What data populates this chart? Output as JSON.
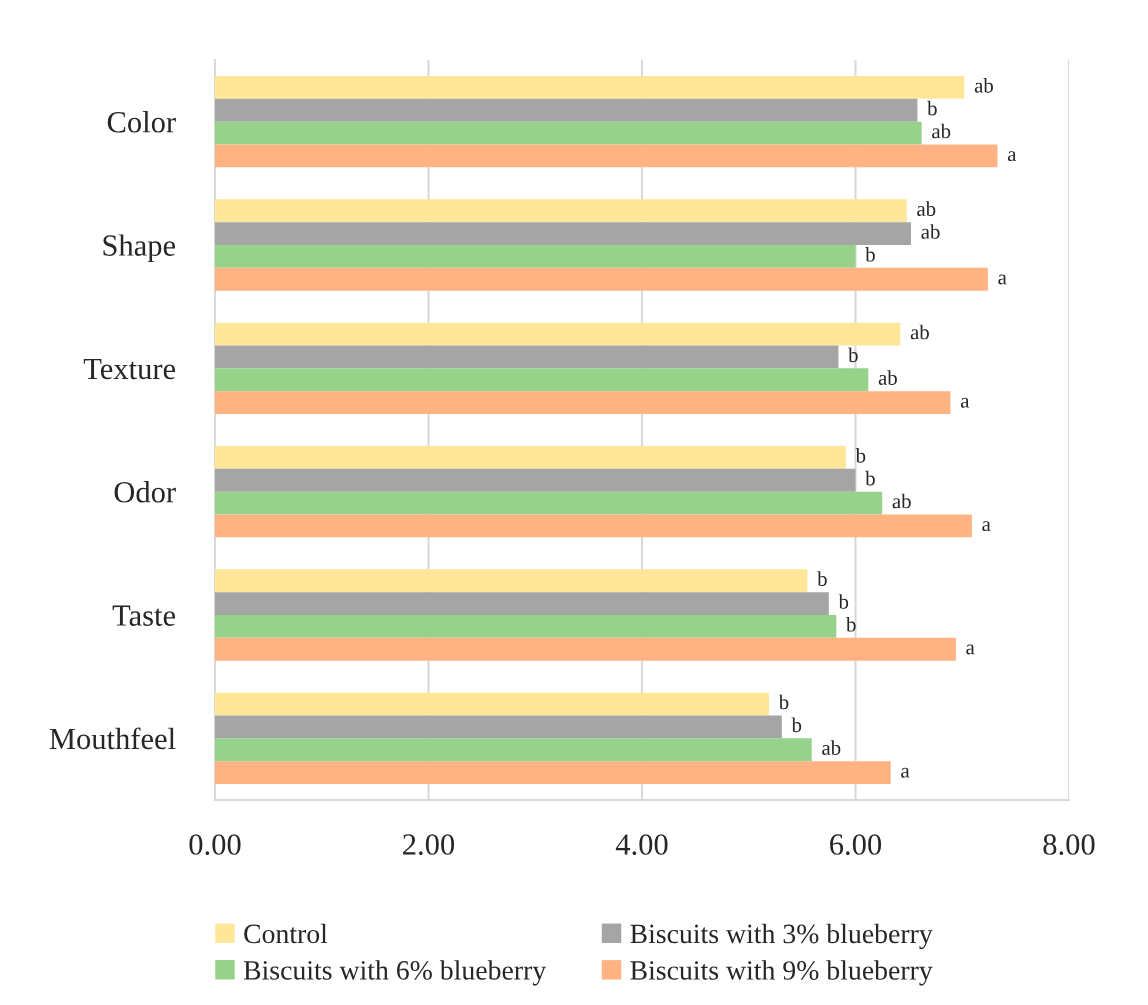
{
  "chart_data": {
    "type": "bar",
    "orientation": "horizontal",
    "categories": [
      "Color",
      "Shape",
      "Texture",
      "Odor",
      "Taste",
      "Mouthfeel"
    ],
    "series": [
      {
        "name": "Control",
        "color": "#ffe699",
        "values": [
          7.02,
          6.48,
          6.42,
          5.91,
          5.55,
          5.19
        ],
        "value_labels": [
          "ab",
          "ab",
          "ab",
          "b",
          "b",
          "b"
        ]
      },
      {
        "name": "Biscuits with 3% blueberry",
        "color": "#a5a5a5",
        "values": [
          6.58,
          6.52,
          5.84,
          6.0,
          5.75,
          5.31
        ],
        "value_labels": [
          "b",
          "ab",
          "b",
          "b",
          "b",
          "b"
        ]
      },
      {
        "name": "Biscuits with 6% blueberry",
        "color": "#97d28b",
        "values": [
          6.62,
          6.0,
          6.12,
          6.25,
          5.82,
          5.59
        ],
        "value_labels": [
          "ab",
          "b",
          "ab",
          "ab",
          "b",
          "ab"
        ]
      },
      {
        "name": "Biscuits with 9% blueberry",
        "color": "#ffb382",
        "values": [
          7.33,
          7.24,
          6.89,
          7.09,
          6.94,
          6.33
        ],
        "value_labels": [
          "a",
          "a",
          "a",
          "a",
          "a",
          "a"
        ]
      }
    ],
    "xlim": [
      0,
      8
    ],
    "xticks": [
      {
        "value": 0,
        "label": "0.00"
      },
      {
        "value": 2,
        "label": "2.00"
      },
      {
        "value": 4,
        "label": "4.00"
      },
      {
        "value": 6,
        "label": "6.00"
      },
      {
        "value": 8,
        "label": "8.00"
      }
    ],
    "grid": "x",
    "legend": "bottom"
  }
}
